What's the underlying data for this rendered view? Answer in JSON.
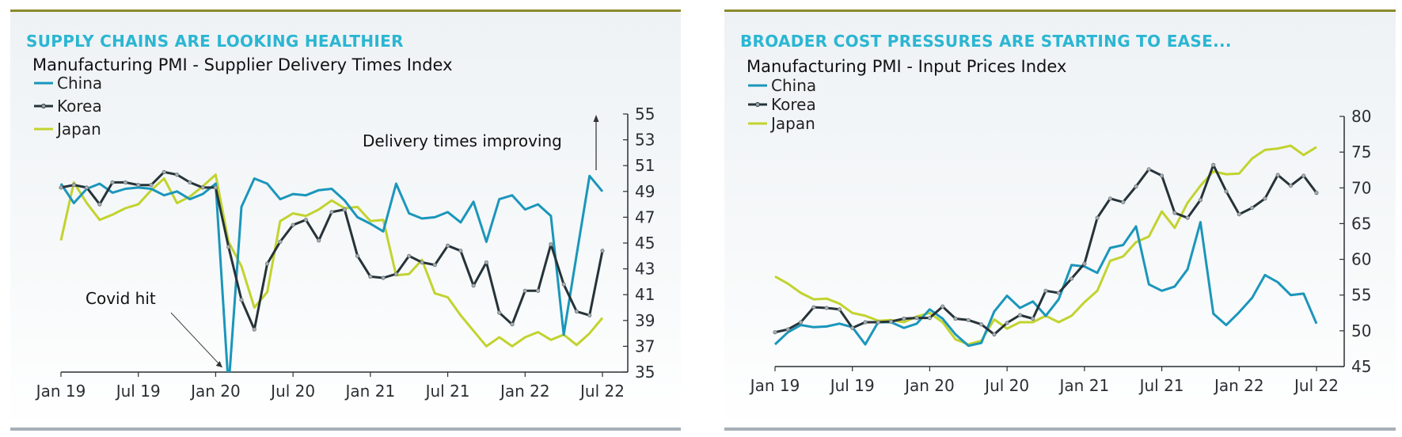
{
  "panels": [
    {
      "headline": "SUPPLY CHAINS ARE LOOKING HEALTHIER",
      "chart_id": "left"
    },
    {
      "headline": "BROADER COST PRESSURES ARE STARTING TO EASE...",
      "chart_id": "right"
    }
  ],
  "colors": {
    "china": "#1b96bb",
    "korea": "#263338",
    "japan": "#c2d32e",
    "headline": "#2bb6d2",
    "top_rule": "#8b8a2e",
    "bottom_rule": "#a7b0b8"
  },
  "chart_data": [
    {
      "type": "line",
      "title": "Manufacturing PMI -  Supplier Delivery Times Index",
      "xlabel": "",
      "ylabel": "",
      "x_start": "Jan 19",
      "x_end": "Jul 22",
      "x_ticks": [
        "Jan 19",
        "Jul 19",
        "Jan 20",
        "Jul 20",
        "Jan 21",
        "Jul 21",
        "Jan 22",
        "Jul 22"
      ],
      "y_ticks": [
        35,
        37,
        39,
        41,
        43,
        45,
        47,
        49,
        51,
        53,
        55
      ],
      "ylim": [
        35,
        55
      ],
      "y_axis_side": "right",
      "grid": false,
      "legend_position": "top-left",
      "series": [
        {
          "name": "China",
          "color_key": "china",
          "markers": false,
          "values": [
            49.6,
            48.1,
            49.2,
            49.6,
            48.9,
            49.2,
            49.3,
            49.2,
            48.7,
            49.0,
            48.4,
            48.8,
            49.6,
            32.1,
            47.8,
            50.0,
            49.6,
            48.4,
            48.8,
            48.7,
            49.1,
            49.2,
            48.3,
            47.0,
            46.5,
            45.9,
            49.6,
            47.3,
            46.9,
            47.0,
            47.4,
            46.6,
            48.2,
            45.1,
            48.4,
            48.7,
            47.6,
            48.0,
            47.1,
            37.9,
            44.1,
            50.2,
            49.0
          ]
        },
        {
          "name": "Korea",
          "color_key": "korea",
          "markers": true,
          "values": [
            49.3,
            49.5,
            49.3,
            48.0,
            49.7,
            49.7,
            49.5,
            49.5,
            50.5,
            50.3,
            49.7,
            49.3,
            49.3,
            44.7,
            40.6,
            38.3,
            43.4,
            45.1,
            46.4,
            46.8,
            45.2,
            47.4,
            47.6,
            44.0,
            42.4,
            42.3,
            42.6,
            44.0,
            43.5,
            43.3,
            44.8,
            44.4,
            41.7,
            43.5,
            39.6,
            38.7,
            41.3,
            41.3,
            44.9,
            41.8,
            39.7,
            39.4,
            44.4
          ]
        },
        {
          "name": "Japan",
          "color_key": "japan",
          "markers": false,
          "values": [
            45.2,
            49.7,
            48.1,
            46.8,
            47.2,
            47.7,
            48.0,
            49.1,
            50.0,
            48.1,
            48.6,
            49.4,
            50.3,
            45.1,
            43.2,
            40.0,
            41.2,
            46.7,
            47.3,
            47.1,
            47.6,
            48.3,
            47.7,
            47.8,
            46.7,
            46.8,
            42.5,
            42.6,
            43.7,
            41.1,
            40.8,
            39.4,
            38.2,
            37.0,
            37.7,
            37.0,
            37.7,
            38.1,
            37.5,
            37.9,
            37.1,
            38.0,
            39.2
          ]
        }
      ],
      "annotations": [
        {
          "text": "Covid hit",
          "points_to": "Feb 20"
        },
        {
          "text": "Delivery times improving",
          "direction": "up-arrow"
        }
      ]
    },
    {
      "type": "line",
      "title": "Manufacturing PMI -  Input Prices Index",
      "xlabel": "",
      "ylabel": "",
      "x_start": "Jan 19",
      "x_end": "Jul 22",
      "x_ticks": [
        "Jan 19",
        "Jul 19",
        "Jan 20",
        "Jul 20",
        "Jan 21",
        "Jul 21",
        "Jan 22",
        "Jul 22"
      ],
      "y_ticks": [
        45,
        50,
        55,
        60,
        65,
        70,
        75,
        80
      ],
      "ylim": [
        45,
        80
      ],
      "y_axis_side": "right",
      "grid": false,
      "legend_position": "top-left",
      "series": [
        {
          "name": "China",
          "color_key": "china",
          "markers": false,
          "values": [
            48.1,
            49.8,
            50.8,
            50.5,
            50.6,
            51.0,
            50.5,
            48.1,
            51.2,
            51.2,
            50.4,
            51.0,
            53.0,
            51.7,
            49.5,
            47.9,
            48.3,
            52.7,
            54.9,
            53.2,
            54.1,
            52.1,
            54.4,
            59.2,
            59.0,
            58.1,
            61.6,
            62.0,
            64.6,
            56.5,
            55.6,
            56.2,
            58.6,
            65.2,
            52.4,
            50.8,
            52.6,
            54.6,
            57.8,
            56.8,
            55.0,
            55.2,
            51.0
          ]
        },
        {
          "name": "Korea",
          "color_key": "korea",
          "markers": true,
          "values": [
            49.8,
            50.2,
            51.2,
            53.3,
            53.2,
            53.0,
            50.4,
            51.2,
            51.2,
            51.3,
            51.7,
            51.8,
            51.8,
            53.4,
            51.7,
            51.5,
            50.9,
            49.5,
            51.1,
            52.2,
            51.7,
            55.6,
            55.3,
            57.3,
            59.4,
            65.8,
            68.5,
            68.0,
            70.2,
            72.6,
            71.7,
            66.5,
            65.8,
            68.3,
            73.2,
            69.5,
            66.3,
            67.2,
            68.5,
            71.8,
            70.3,
            71.7,
            69.3
          ]
        },
        {
          "name": "Japan",
          "color_key": "japan",
          "markers": false,
          "values": [
            57.6,
            56.6,
            55.3,
            54.4,
            54.5,
            53.8,
            52.5,
            52.1,
            51.4,
            51.5,
            51.2,
            52.0,
            52.5,
            51.2,
            48.8,
            48.1,
            48.6,
            51.6,
            50.3,
            51.2,
            51.2,
            52.1,
            51.2,
            52.1,
            54.0,
            55.6,
            59.8,
            60.4,
            62.4,
            63.2,
            66.7,
            64.4,
            67.9,
            70.3,
            72.3,
            71.9,
            72.0,
            74.1,
            75.3,
            75.5,
            75.9,
            74.6,
            75.7
          ]
        }
      ],
      "annotations": []
    }
  ]
}
